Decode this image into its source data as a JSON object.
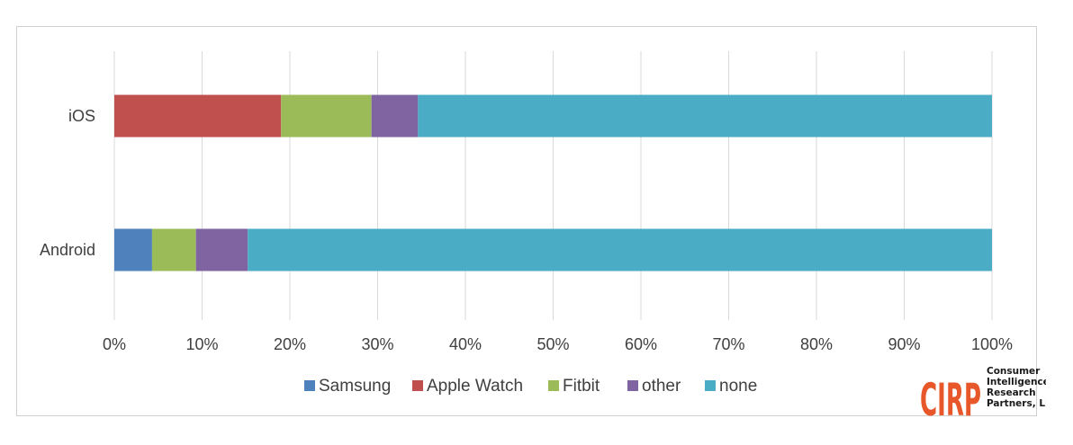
{
  "chart_data": {
    "type": "bar",
    "orientation": "horizontal",
    "stacked": true,
    "categories": [
      "iOS",
      "Android"
    ],
    "series": [
      {
        "name": "Samsung",
        "color": "#4f81bd",
        "values": [
          0,
          4.3
        ]
      },
      {
        "name": "Apple Watch",
        "color": "#c0504d",
        "values": [
          19,
          0
        ]
      },
      {
        "name": "Fitbit",
        "color": "#9bbb59",
        "values": [
          10.3,
          5
        ]
      },
      {
        "name": "other",
        "color": "#8064a2",
        "values": [
          5.3,
          5.9
        ]
      },
      {
        "name": "none",
        "color": "#4bacc6",
        "values": [
          65.4,
          84.8
        ]
      }
    ],
    "xlim": [
      0,
      100
    ],
    "x_ticks": [
      "0%",
      "10%",
      "20%",
      "30%",
      "40%",
      "50%",
      "60%",
      "70%",
      "80%",
      "90%",
      "100%"
    ],
    "grid": true,
    "legend_position": "bottom"
  },
  "logo": {
    "big_text": "CIRP",
    "lines": [
      "Consumer",
      "Intelligence",
      "Research",
      "Partners, LLC"
    ]
  }
}
